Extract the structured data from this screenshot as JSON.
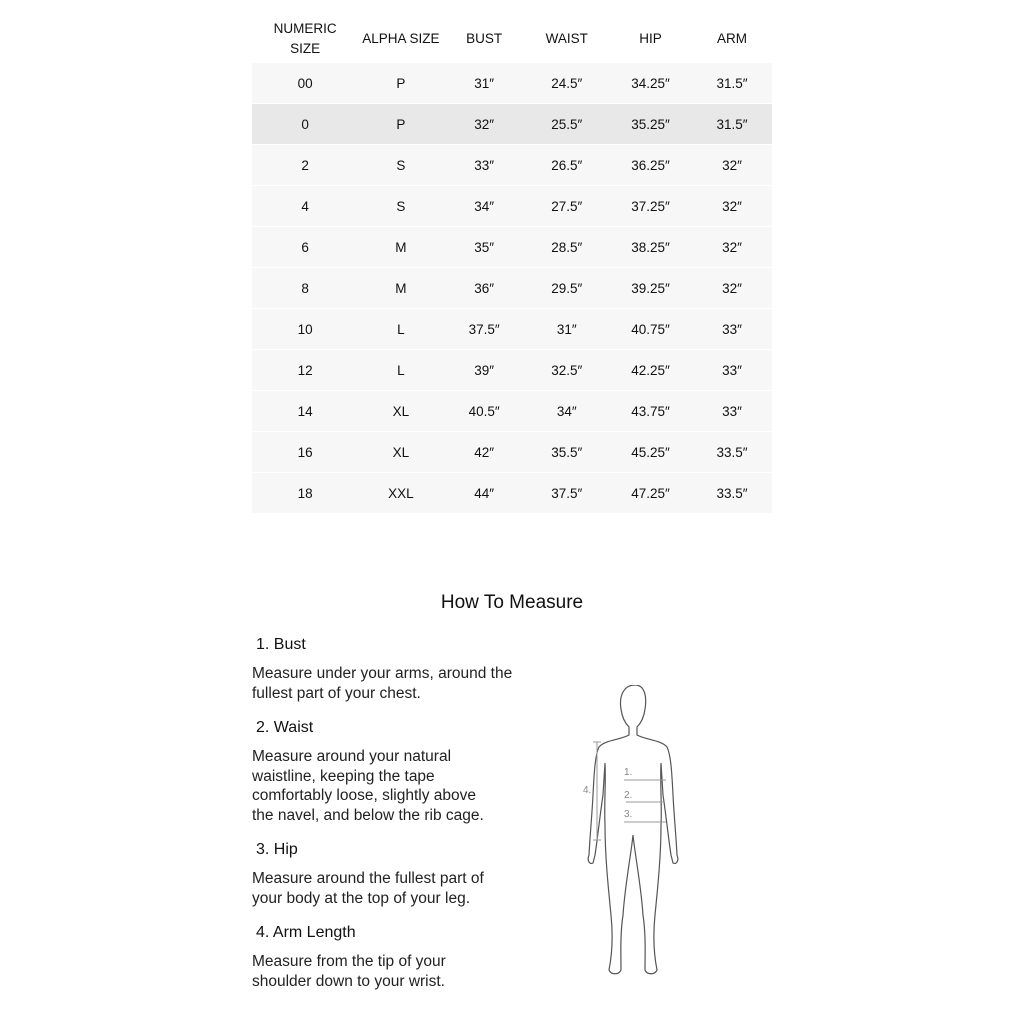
{
  "table": {
    "headers": [
      "NUMERIC SIZE",
      "ALPHA SIZE",
      "BUST",
      "WAIST",
      "HIP",
      "ARM"
    ],
    "rows": [
      [
        "00",
        "P",
        "31″",
        "24.5″",
        "34.25″",
        "31.5″"
      ],
      [
        "0",
        "P",
        "32″",
        "25.5″",
        "35.25″",
        "31.5″"
      ],
      [
        "2",
        "S",
        "33″",
        "26.5″",
        "36.25″",
        "32″"
      ],
      [
        "4",
        "S",
        "34″",
        "27.5″",
        "37.25″",
        "32″"
      ],
      [
        "6",
        "M",
        "35″",
        "28.5″",
        "38.25″",
        "32″"
      ],
      [
        "8",
        "M",
        "36″",
        "29.5″",
        "39.25″",
        "32″"
      ],
      [
        "10",
        "L",
        "37.5″",
        "31″",
        "40.75″",
        "33″"
      ],
      [
        "12",
        "L",
        "39″",
        "32.5″",
        "42.25″",
        "33″"
      ],
      [
        "14",
        "XL",
        "40.5″",
        "34″",
        "43.75″",
        "33″"
      ],
      [
        "16",
        "XL",
        "42″",
        "35.5″",
        "45.25″",
        "33.5″"
      ],
      [
        "18",
        "XXL",
        "44″",
        "37.5″",
        "47.25″",
        "33.5″"
      ]
    ],
    "highlighted_row": 1
  },
  "measure": {
    "title": "How To Measure",
    "steps": [
      {
        "title": "1. Bust",
        "text": "Measure under your arms, around the fullest part of your chest."
      },
      {
        "title": "2. Waist",
        "text": "Measure around your natural waistline, keeping the tape comfortably loose, slightly above the navel, and below the rib cage."
      },
      {
        "title": "3. Hip",
        "text": "Measure around the fullest part of your body at the top of your leg."
      },
      {
        "title": "4. Arm Length",
        "text": "Measure from the tip of your shoulder down to your wrist."
      }
    ],
    "figure_labels": [
      "1.",
      "2.",
      "3.",
      "4."
    ]
  }
}
